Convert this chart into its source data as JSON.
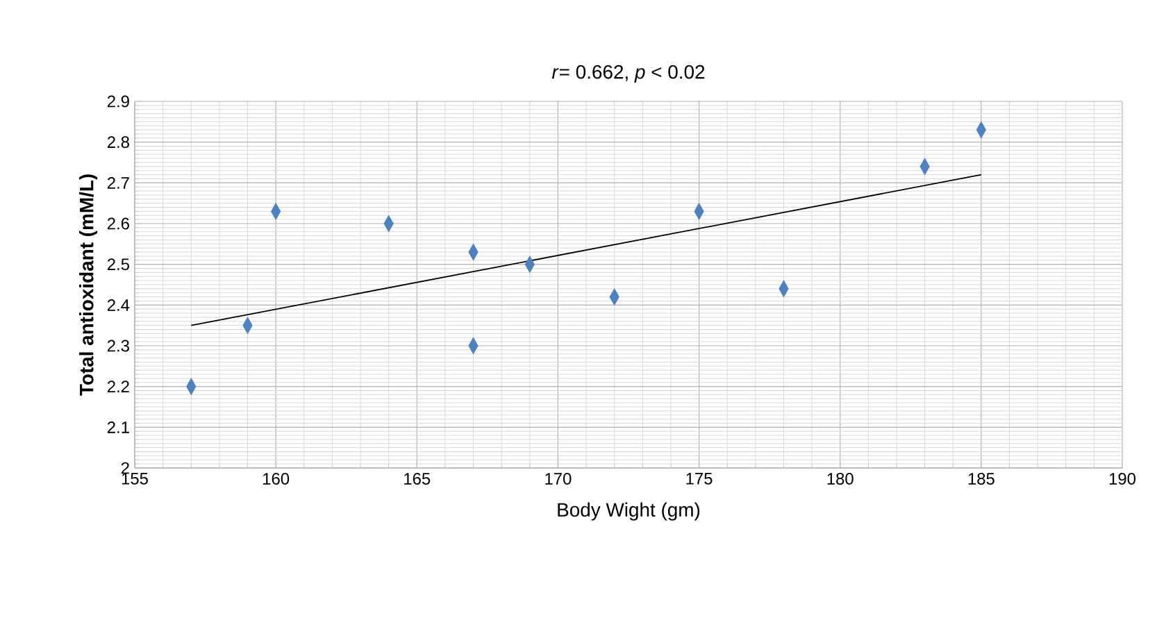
{
  "chart_data": {
    "type": "scatter",
    "title": "*r*= 0.662, *p* < 0.02",
    "xlabel": "Body Wight (gm)",
    "ylabel": "Total antioxidant (mM/L)",
    "xlim": [
      155,
      190
    ],
    "xticks": [
      155,
      160,
      165,
      170,
      175,
      180,
      185,
      190
    ],
    "ylim": [
      2,
      2.9
    ],
    "yticks": [
      2,
      2.1,
      2.2,
      2.3,
      2.4,
      2.5,
      2.6,
      2.7,
      2.8,
      2.9
    ],
    "grid": true,
    "marker": "diamond",
    "series": [
      {
        "color": "#4f81bd",
        "x": [
          157,
          159,
          160,
          164,
          167,
          167,
          169,
          172,
          175,
          178,
          183,
          185
        ],
        "values": [
          2.2,
          2.35,
          2.63,
          2.6,
          2.53,
          2.3,
          2.5,
          2.42,
          2.63,
          2.44,
          2.74,
          2.83
        ]
      },
      {
        "type": "line",
        "color": "#000000",
        "marker": "none",
        "x": [
          157,
          185
        ],
        "values": [
          2.35,
          2.72
        ]
      }
    ]
  }
}
